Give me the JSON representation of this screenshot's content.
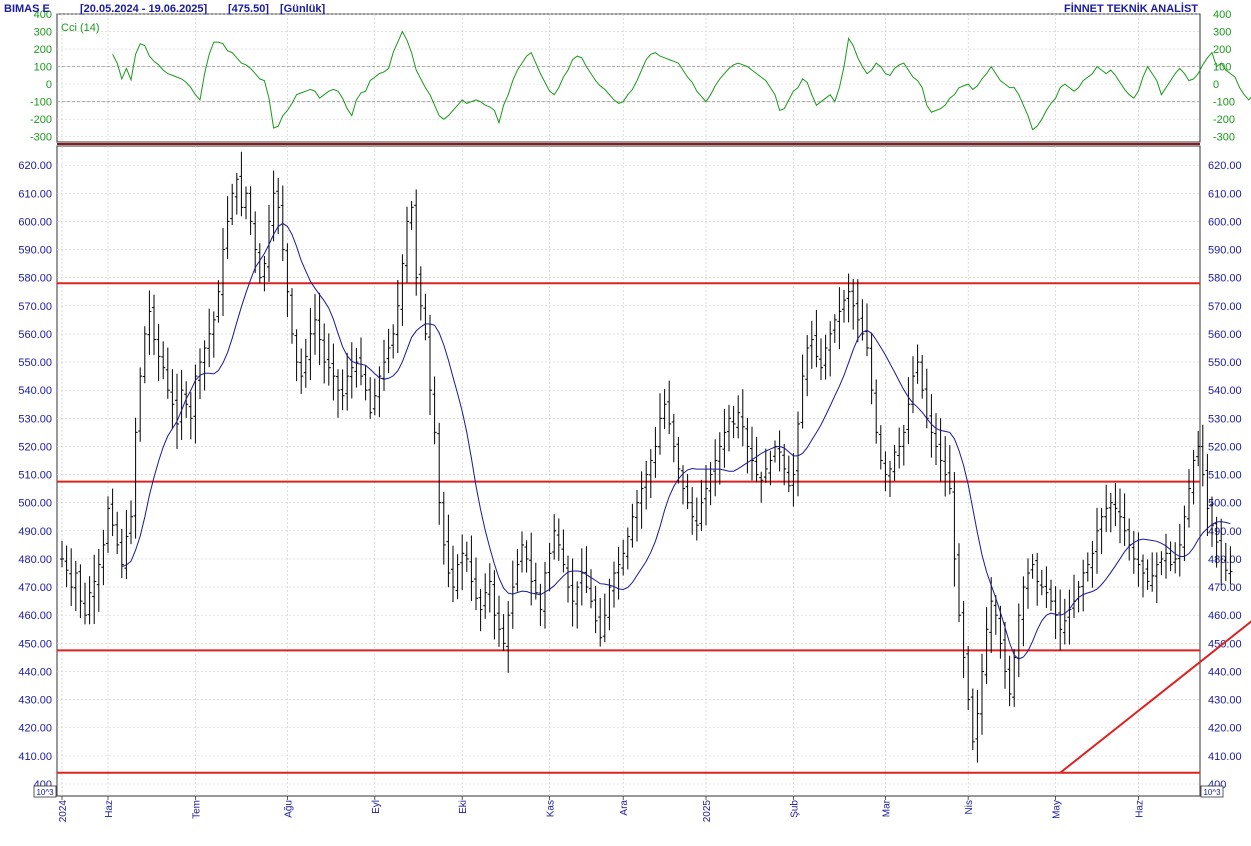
{
  "header": {
    "symbol": "BIMAS E",
    "range": "[20.05.2024 - 19.06.2025]",
    "last": "[475.50]",
    "period": "[Günlük]",
    "brand": "FİNNET TEKNİK ANALİST"
  },
  "chart_data": [
    {
      "type": "line",
      "panel": "indicator",
      "title": "Cci (14)",
      "ylim": [
        -330,
        400
      ],
      "y_ticks": [
        400,
        300,
        200,
        100,
        0,
        -100,
        -200,
        -300
      ],
      "y_tick_labels": [
        "400",
        "300",
        "200",
        "100",
        "0",
        "-100",
        "-200",
        "-300"
      ],
      "reference_lines": [
        100,
        -100
      ],
      "color": "#1a9a1a",
      "series": [
        {
          "values": [
            170,
            120,
            30,
            90,
            25,
            170,
            230,
            220,
            160,
            130,
            110,
            80,
            60,
            50,
            40,
            30,
            10,
            -20,
            -60,
            -90,
            60,
            170,
            240,
            240,
            230,
            190,
            180,
            150,
            120,
            110,
            90,
            60,
            30,
            20,
            -80,
            -250,
            -240,
            -180,
            -150,
            -110,
            -60,
            -50,
            -40,
            -30,
            -40,
            -80,
            -60,
            -40,
            -30,
            -40,
            -80,
            -140,
            -180,
            -90,
            -50,
            -40,
            20,
            40,
            60,
            70,
            90,
            180,
            240,
            300,
            250,
            180,
            80,
            30,
            -20,
            -60,
            -120,
            -180,
            -200,
            -180,
            -150,
            -120,
            -90,
            -110,
            -100,
            -90,
            -100,
            -120,
            -130,
            -150,
            -220,
            -120,
            -60,
            20,
            80,
            120,
            160,
            180,
            120,
            60,
            10,
            -40,
            -60,
            -20,
            40,
            80,
            140,
            160,
            150,
            100,
            60,
            20,
            -10,
            -30,
            -60,
            -90,
            -110,
            -100,
            -60,
            -30,
            20,
            80,
            140,
            170,
            180,
            160,
            150,
            140,
            130,
            120,
            80,
            40,
            10,
            -40,
            -70,
            -100,
            -60,
            -10,
            30,
            60,
            90,
            110,
            120,
            110,
            100,
            80,
            60,
            40,
            20,
            -20,
            -60,
            -150,
            -140,
            -90,
            -40,
            -20,
            30,
            10,
            -60,
            -120,
            -100,
            -80,
            -60,
            -100,
            -20,
            100,
            260,
            220,
            150,
            100,
            60,
            80,
            120,
            100,
            60,
            50,
            90,
            110,
            120,
            80,
            40,
            20,
            -20,
            -120,
            -160,
            -150,
            -140,
            -120,
            -80,
            -60,
            -20,
            -10,
            0,
            -30,
            -10,
            30,
            60,
            100,
            60,
            20,
            0,
            -20,
            -20,
            -60,
            -120,
            -180,
            -260,
            -240,
            -200,
            -150,
            -110,
            -80,
            -20,
            0,
            -20,
            -40,
            -20,
            20,
            40,
            60,
            100,
            80,
            60,
            80,
            50,
            10,
            -30,
            -60,
            -80,
            -40,
            40,
            100,
            60,
            20,
            -60,
            -20,
            20,
            60,
            90,
            60,
            20,
            30,
            60,
            110,
            150,
            180,
            100,
            120,
            80,
            60,
            40,
            -20,
            -60,
            -90,
            -60,
            -50,
            -40,
            -60,
            -30,
            -40,
            -60,
            -30,
            40,
            120,
            180,
            220,
            200,
            150,
            100,
            40,
            0,
            -20,
            -50
          ]
        }
      ]
    },
    {
      "type": "ohlc",
      "panel": "price",
      "ylim": [
        400,
        625
      ],
      "y_ticks": [
        400,
        410,
        420,
        430,
        440,
        450,
        460,
        470,
        480,
        490,
        500,
        510,
        520,
        530,
        540,
        550,
        560,
        570,
        580,
        590,
        600,
        610,
        620
      ],
      "y_tick_labels": [
        "400",
        "410.00",
        "420.00",
        "430.00",
        "440.00",
        "450.00",
        "460.00",
        "470.00",
        "480.00",
        "490.00",
        "500.00",
        "510.00",
        "520.00",
        "530.00",
        "540.00",
        "550.00",
        "560.00",
        "570.00",
        "580.00",
        "590.00",
        "600.00",
        "610.00",
        "620.00"
      ],
      "x_labels": [
        "2024",
        "Haz",
        "Tem",
        "Ağu",
        "Eyl",
        "Eki",
        "Kas",
        "Ara",
        "2025",
        "Şub",
        "Mar",
        "Nis",
        "May",
        "Haz"
      ],
      "x_label_positions": [
        0,
        10,
        29,
        49,
        68,
        87,
        106,
        122,
        140,
        159,
        179,
        197,
        216,
        234
      ],
      "scale_note": "10^3",
      "horizontal_levels": [
        578,
        507.5,
        447.5,
        404
      ],
      "trendline": {
        "from": [
          217,
          404
        ],
        "to": [
          278,
          483
        ]
      },
      "moving_average_color": "#1a1a9a",
      "bar_color": "#000000",
      "line_color": "#dd2222",
      "closes": [
        480,
        476,
        470,
        475,
        465,
        460,
        468,
        472,
        478,
        485,
        498,
        492,
        485,
        478,
        488,
        495,
        525,
        545,
        560,
        568,
        558,
        552,
        548,
        540,
        535,
        528,
        540,
        535,
        530,
        545,
        550,
        555,
        560,
        565,
        575,
        590,
        600,
        610,
        615,
        605,
        610,
        600,
        590,
        580,
        585,
        600,
        610,
        605,
        590,
        575,
        560,
        550,
        545,
        552,
        560,
        565,
        558,
        550,
        548,
        545,
        540,
        538,
        545,
        548,
        550,
        545,
        540,
        532,
        538,
        545,
        550,
        555,
        560,
        570,
        585,
        600,
        605,
        580,
        570,
        560,
        540,
        525,
        500,
        485,
        475,
        470,
        478,
        482,
        480,
        472,
        466,
        462,
        468,
        472,
        460,
        455,
        450,
        460,
        470,
        478,
        485,
        480,
        472,
        468,
        462,
        475,
        482,
        490,
        485,
        478,
        470,
        465,
        470,
        475,
        470,
        465,
        458,
        452,
        460,
        470,
        475,
        478,
        482,
        488,
        495,
        500,
        505,
        510,
        515,
        520,
        530,
        535,
        528,
        520,
        512,
        505,
        500,
        495,
        492,
        500,
        505,
        510,
        515,
        520,
        525,
        530,
        528,
        532,
        527,
        520,
        515,
        510,
        508,
        512,
        515,
        520,
        518,
        512,
        506,
        510,
        528,
        545,
        555,
        558,
        552,
        548,
        555,
        560,
        565,
        568,
        572,
        575,
        570,
        565,
        560,
        555,
        540,
        525,
        515,
        510,
        512,
        518,
        520,
        525,
        535,
        545,
        550,
        540,
        530,
        525,
        520,
        515,
        510,
        505,
        480,
        460,
        445,
        430,
        415,
        425,
        440,
        455,
        465,
        460,
        450,
        440,
        432,
        445,
        460,
        470,
        475,
        478,
        472,
        470,
        468,
        465,
        460,
        455,
        458,
        462,
        465,
        470,
        475,
        478,
        482,
        490,
        495,
        498,
        500,
        498,
        495,
        490,
        485,
        480,
        478,
        475,
        472,
        474,
        478,
        480,
        482,
        478,
        480,
        485,
        495,
        505,
        515,
        520,
        510,
        498,
        492,
        486,
        480,
        476,
        475.5
      ]
    }
  ]
}
